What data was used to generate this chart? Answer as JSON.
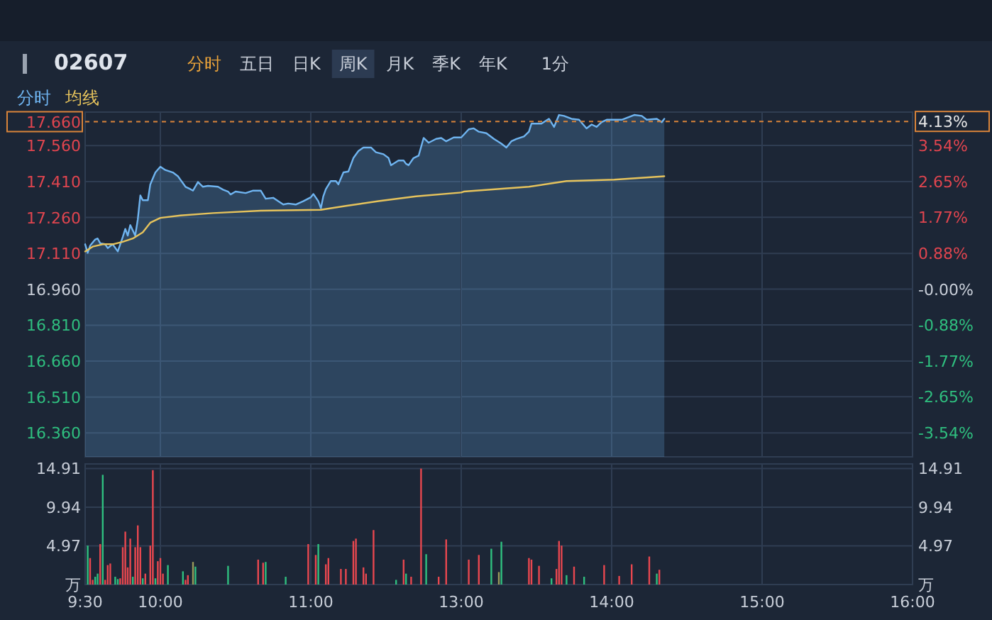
{
  "chart_data": [
    {
      "type": "line",
      "title": "02607",
      "annotations": [
        "分时",
        "五日",
        "日K",
        "周K",
        "月K",
        "季K",
        "年K",
        "1分"
      ],
      "xlim": [
        9.5,
        12
      ],
      "xticks": [
        9.5,
        10,
        11
      ],
      "ylim": [
        16.26,
        17.7
      ],
      "yticks": [
        {
          "value": 16.36,
          "label": "16.360"
        },
        {
          "value": 16.51,
          "label": "16.510"
        },
        {
          "value": 16.66,
          "label": "16.660"
        },
        {
          "value": 16.81,
          "label": "16.810"
        },
        {
          "value": 16.96,
          "label": "16.960"
        },
        {
          "value": 17.11,
          "label": "17.110"
        },
        {
          "value": 17.26,
          "label": "17.260"
        },
        {
          "value": 17.41,
          "label": "17.410"
        },
        {
          "value": 17.56,
          "label": "17.560"
        }
      ],
      "tick_labels": "y",
      "grid": true,
      "legend": "top left",
      "marker": "none",
      "ref_lines": [
        {
          "axis": "y",
          "value": 17.66,
          "label": "17.660",
          "color": "#d9843a",
          "line_style": "dashed"
        }
      ],
      "series": [
        {
          "name": "分时",
          "type": "area",
          "color": "#6fb4f0",
          "x": [
            9.5,
            9.517,
            9.533,
            9.567,
            9.583,
            9.6,
            9.633,
            9.65,
            9.683,
            9.717,
            9.75,
            9.767,
            9.783,
            9.8,
            9.833,
            9.85,
            9.867,
            9.883,
            9.917,
            9.933,
            9.967,
            10,
            10.033,
            10.083,
            10.117,
            10.167,
            10.2,
            10.217,
            10.25,
            10.283,
            10.317,
            10.383,
            10.417,
            10.45,
            10.467,
            10.5,
            10.567,
            10.617,
            10.667,
            10.7,
            10.75,
            10.783,
            10.817,
            10.85,
            10.9,
            10.95,
            11,
            11.017,
            11.05,
            11.067,
            11.083,
            11.1,
            11.133,
            11.167,
            11.183,
            11.217,
            11.25,
            11.283,
            11.317,
            11.35,
            11.4,
            11.433,
            11.483,
            11.517,
            11.533,
            11.583,
            11.617,
            11.633,
            11.65,
            11.683,
            11.717,
            11.75,
            11.783,
            11.833,
            11.867,
            11.9,
            11.95,
            12
          ],
          "values": [
            17.148,
            17.112,
            17.142,
            17.168,
            17.172,
            17.152,
            17.148,
            17.132,
            17.148,
            17.118,
            17.178,
            17.212,
            17.184,
            17.228,
            17.184,
            17.252,
            17.352,
            17.332,
            17.332,
            17.398,
            17.448,
            17.472,
            17.458,
            17.448,
            17.432,
            17.388,
            17.378,
            17.372,
            17.408,
            17.388,
            17.392,
            17.388,
            17.376,
            17.368,
            17.356,
            17.368,
            17.362,
            17.372,
            17.372,
            17.338,
            17.342,
            17.328,
            17.314,
            17.318,
            17.314,
            17.328,
            17.344,
            17.358,
            17.328,
            17.298,
            17.348,
            17.378,
            17.412,
            17.412,
            17.398,
            17.448,
            17.452,
            17.508,
            17.538,
            17.552,
            17.552,
            17.532,
            17.524,
            17.508,
            17.478,
            17.498,
            17.498,
            17.484,
            17.478,
            17.508,
            17.518,
            17.592,
            17.572,
            17.588,
            17.592,
            17.578,
            17.594,
            17.594
          ]
        },
        {
          "name": "均线",
          "type": "line",
          "color": "#e6c35c",
          "x": [
            9.5,
            9.55,
            9.617,
            9.683,
            9.75,
            9.817,
            9.883,
            9.933,
            10,
            10.133,
            10.35,
            10.667,
            11.067,
            11.233,
            11.45,
            11.7,
            12
          ],
          "values": [
            17.118,
            17.138,
            17.148,
            17.148,
            17.158,
            17.172,
            17.198,
            17.238,
            17.258,
            17.268,
            17.278,
            17.288,
            17.292,
            17.308,
            17.328,
            17.348,
            17.364
          ]
        }
      ]
    },
    {
      "type": "line",
      "xlim": [
        13,
        16
      ],
      "xticks": [
        13,
        14,
        15,
        16
      ],
      "ylim": [
        16.26,
        17.7
      ],
      "y2lim": [
        -4.13,
        4.36
      ],
      "y2ticks": [
        {
          "value": -3.54,
          "label": "-3.54%"
        },
        {
          "value": -2.65,
          "label": "-2.65%"
        },
        {
          "value": -1.77,
          "label": "-1.77%"
        },
        {
          "value": -0.88,
          "label": "-0.88%"
        },
        {
          "value": 0,
          "label": "-0.00%"
        },
        {
          "value": 0.88,
          "label": "0.88%"
        },
        {
          "value": 1.77,
          "label": "1.77%"
        },
        {
          "value": 2.65,
          "label": "2.65%"
        },
        {
          "value": 3.54,
          "label": "3.54%"
        }
      ],
      "tick_labels": "y",
      "grid": true,
      "marker": "none",
      "ref_lines": [
        {
          "axis": "y2",
          "value": 4.13,
          "label": "4.13%",
          "color": "#d9843a",
          "line_style": "dashed"
        }
      ],
      "series": [
        {
          "type": "area",
          "color": "#6fb4f0",
          "x": [
            13,
            13.05,
            13.083,
            13.117,
            13.167,
            13.217,
            13.267,
            13.3,
            13.333,
            13.367,
            13.417,
            13.45,
            13.467,
            13.533,
            13.583,
            13.617,
            13.65,
            13.683,
            13.733,
            13.783,
            13.833,
            13.867,
            13.9,
            13.933,
            13.967,
            14.017,
            14.067,
            14.15,
            14.2,
            14.233,
            14.3,
            14.333,
            14.35
          ],
          "values": [
            17.594,
            17.628,
            17.632,
            17.618,
            17.612,
            17.588,
            17.568,
            17.552,
            17.578,
            17.588,
            17.598,
            17.618,
            17.652,
            17.652,
            17.672,
            17.638,
            17.688,
            17.684,
            17.672,
            17.668,
            17.632,
            17.648,
            17.638,
            17.658,
            17.668,
            17.668,
            17.668,
            17.688,
            17.684,
            17.668,
            17.672,
            17.658,
            17.672
          ]
        },
        {
          "type": "line",
          "color": "#e6c35c",
          "x": [
            13,
            13.017,
            13.45,
            13.7,
            14.017,
            14.35
          ],
          "values": [
            17.364,
            17.368,
            17.388,
            17.412,
            17.418,
            17.432
          ]
        }
      ]
    },
    {
      "type": "bar",
      "xlim": [
        9.5,
        12
      ],
      "xticks": [
        {
          "value": 9.5,
          "label": "9:30"
        },
        {
          "value": 10,
          "label": "10:00"
        },
        {
          "value": 11,
          "label": "11:00"
        }
      ],
      "ylim": [
        0,
        15.5
      ],
      "yticks": [
        {
          "value": 0,
          "label": "万"
        },
        4.97,
        9.94,
        14.91
      ],
      "grid": true,
      "x": [
        9.517,
        9.533,
        9.55,
        9.567,
        9.583,
        9.6,
        9.617,
        9.633,
        9.65,
        9.667,
        9.7,
        9.717,
        9.733,
        9.75,
        9.767,
        9.783,
        9.8,
        9.817,
        9.833,
        9.85,
        9.867,
        9.883,
        9.9,
        9.933,
        9.95,
        9.967,
        9.983,
        10,
        10.017,
        10.05,
        10.15,
        10.167,
        10.183,
        10.217,
        10.233,
        10.45,
        10.65,
        10.683,
        10.7,
        10.833,
        10.983,
        11.033,
        11.05,
        11.1,
        11.117,
        11.2,
        11.233,
        11.283,
        11.3,
        11.35,
        11.367,
        11.417,
        11.567,
        11.617,
        11.633,
        11.667,
        11.733,
        11.767,
        11.85,
        11.9
      ],
      "values": [
        5.0,
        3.4,
        0.6,
        1.0,
        1.4,
        5.2,
        14.1,
        0.6,
        2.5,
        2.7,
        1.0,
        0.7,
        0.8,
        4.8,
        6.8,
        2.2,
        5.9,
        1.0,
        4.8,
        7.6,
        4.8,
        0.8,
        1.4,
        5.0,
        14.7,
        0.8,
        3.0,
        3.4,
        1.4,
        2.5,
        1.7,
        0.6,
        1.2,
        2.9,
        2.3,
        2.4,
        3.2,
        2.8,
        2.9,
        1.0,
        5.2,
        3.8,
        5.2,
        2.6,
        3.4,
        2.0,
        2.0,
        5.6,
        5.9,
        2.2,
        1.4,
        7.0,
        0.6,
        3.2,
        1.4,
        1.0,
        14.9,
        3.9,
        1.0,
        5.8
      ],
      "colors": [
        "#2fbf7f",
        "#e8474f",
        "#e8474f",
        "#2fbf7f",
        "#2fbf7f",
        "#e8474f",
        "#2fbf7f",
        "#e8474f",
        "#e8474f",
        "#e8474f",
        "#2fbf7f",
        "#2fbf7f",
        "#e8474f",
        "#e8474f",
        "#e8474f",
        "#e8474f",
        "#e8474f",
        "#2fbf7f",
        "#e8474f",
        "#e8474f",
        "#e8474f",
        "#2fbf7f",
        "#e8474f",
        "#e8474f",
        "#e8474f",
        "#2fbf7f",
        "#e8474f",
        "#e8474f",
        "#e8474f",
        "#2fbf7f",
        "#2fbf7f",
        "#e8474f",
        "#e8474f",
        "#9a9a5a",
        "#2fbf7f",
        "#2fbf7f",
        "#e8474f",
        "#e8474f",
        "#2fbf7f",
        "#2fbf7f",
        "#e8474f",
        "#e8474f",
        "#2fbf7f",
        "#e8474f",
        "#e8474f",
        "#e8474f",
        "#e8474f",
        "#e8474f",
        "#e8474f",
        "#e8474f",
        "#e8474f",
        "#e8474f",
        "#2fbf7f",
        "#e8474f",
        "#2fbf7f",
        "#e8474f",
        "#e8474f",
        "#2fbf7f",
        "#e8474f",
        "#e8474f"
      ]
    },
    {
      "type": "bar",
      "xlim": [
        13,
        16
      ],
      "xticks": [
        {
          "value": 13,
          "label": "13:00"
        },
        {
          "value": 14,
          "label": "14:00"
        },
        {
          "value": 15,
          "label": "15:00"
        },
        {
          "value": 16,
          "label": "16:00"
        }
      ],
      "ylim": [
        0,
        15.5
      ],
      "y2lim": [
        0,
        15.5
      ],
      "y2ticks": [
        {
          "value": 0,
          "label": "万"
        },
        4.97,
        9.94,
        14.91
      ],
      "grid": true,
      "x": [
        13.05,
        13.117,
        13.2,
        13.25,
        13.267,
        13.45,
        13.467,
        13.517,
        13.6,
        13.633,
        13.65,
        13.667,
        13.7,
        13.75,
        13.817,
        13.95,
        14.05,
        14.133,
        14.25,
        14.3,
        14.317
      ],
      "values": [
        3.2,
        3.8,
        4.6,
        1.6,
        5.5,
        3.4,
        3.2,
        2.4,
        0.8,
        2.0,
        5.6,
        5.0,
        1.2,
        2.3,
        1.0,
        2.5,
        1.1,
        2.6,
        3.6,
        1.4,
        1.9
      ],
      "colors": [
        "#e8474f",
        "#e8474f",
        "#2fbf7f",
        "#9a9a5a",
        "#2fbf7f",
        "#e8474f",
        "#e8474f",
        "#e8474f",
        "#2fbf7f",
        "#e8474f",
        "#e8474f",
        "#e8474f",
        "#2fbf7f",
        "#e8474f",
        "#2fbf7f",
        "#e8474f",
        "#e8474f",
        "#e8474f",
        "#e8474f",
        "#2fbf7f",
        "#e8474f"
      ]
    }
  ]
}
